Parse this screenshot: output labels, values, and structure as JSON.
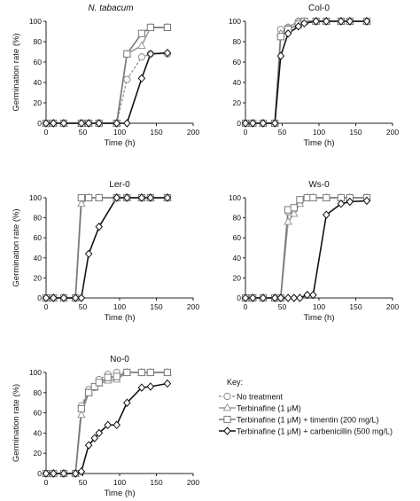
{
  "series_styles": [
    {
      "marker": "circle",
      "color": "#8a8a8a",
      "dash": "3,2",
      "width": 1.2
    },
    {
      "marker": "triangle",
      "color": "#9a9a9a",
      "dash": "",
      "width": 1.6
    },
    {
      "marker": "square",
      "color": "#7a7a7a",
      "dash": "",
      "width": 1.6
    },
    {
      "marker": "diamond",
      "color": "#111111",
      "dash": "",
      "width": 1.6
    }
  ],
  "key": {
    "title": "Key:",
    "entries": [
      "No treatment",
      "Terbinafine (1 μM)",
      "Terbinafine (1 μM) + timentin (200 mg/L)",
      "Terbinafine (1 μM) + carbenicillin (500 mg/L)"
    ]
  },
  "chart_data": [
    {
      "type": "line",
      "title": "N. tabacum",
      "title_italic": true,
      "xlabel": "Time (h)",
      "ylabel": "Germination rate (%)",
      "xlim": [
        0,
        200
      ],
      "ylim": [
        0,
        100
      ],
      "xticks": [
        0,
        50,
        100,
        150,
        200
      ],
      "yticks": [
        0,
        20,
        40,
        60,
        80,
        100
      ],
      "series": [
        {
          "x": [
            0,
            10,
            24,
            48,
            58,
            72,
            96,
            110,
            130,
            142,
            165
          ],
          "y": [
            0,
            0,
            0,
            0,
            0,
            0,
            0,
            43,
            65,
            68,
            68
          ]
        },
        {
          "x": [
            0,
            10,
            24,
            48,
            58,
            72,
            96,
            110,
            130,
            142,
            165
          ],
          "y": [
            0,
            0,
            0,
            0,
            0,
            0,
            0,
            68,
            76,
            94,
            94
          ]
        },
        {
          "x": [
            0,
            10,
            24,
            48,
            58,
            72,
            96,
            110,
            130,
            142,
            165
          ],
          "y": [
            0,
            0,
            0,
            0,
            0,
            0,
            0,
            68,
            88,
            94,
            94
          ]
        },
        {
          "x": [
            0,
            10,
            24,
            48,
            58,
            72,
            96,
            110,
            130,
            142,
            165
          ],
          "y": [
            0,
            0,
            0,
            0,
            0,
            0,
            0,
            0,
            44,
            68,
            69
          ]
        }
      ]
    },
    {
      "type": "line",
      "title": "Col-0",
      "xlabel": "Time (h)",
      "ylabel": "",
      "xlim": [
        0,
        200
      ],
      "ylim": [
        0,
        100
      ],
      "xticks": [
        0,
        50,
        100,
        150,
        200
      ],
      "yticks": [
        0,
        20,
        40,
        60,
        80,
        100
      ],
      "series": [
        {
          "x": [
            0,
            10,
            24,
            40,
            48,
            58,
            72,
            80,
            96,
            110,
            130,
            142,
            165
          ],
          "y": [
            0,
            0,
            0,
            0,
            92,
            94,
            100,
            100,
            100,
            100,
            100,
            100,
            100
          ]
        },
        {
          "x": [
            0,
            10,
            24,
            40,
            48,
            58,
            72,
            80,
            96,
            110,
            130,
            142,
            165
          ],
          "y": [
            0,
            0,
            0,
            0,
            88,
            94,
            100,
            100,
            100,
            100,
            100,
            100,
            100
          ]
        },
        {
          "x": [
            0,
            10,
            24,
            40,
            48,
            58,
            72,
            80,
            96,
            110,
            130,
            142,
            165
          ],
          "y": [
            0,
            0,
            0,
            0,
            85,
            92,
            97,
            100,
            100,
            100,
            100,
            100,
            100
          ]
        },
        {
          "x": [
            0,
            10,
            24,
            40,
            48,
            58,
            72,
            80,
            96,
            110,
            130,
            142,
            165
          ],
          "y": [
            0,
            0,
            0,
            0,
            66,
            88,
            95,
            98,
            100,
            100,
            100,
            100,
            100
          ]
        }
      ]
    },
    {
      "type": "line",
      "title": "Ler-0",
      "xlabel": "Time (h)",
      "ylabel": "Germination rate (%)",
      "xlim": [
        0,
        200
      ],
      "ylim": [
        0,
        100
      ],
      "xticks": [
        0,
        50,
        100,
        150,
        200
      ],
      "yticks": [
        0,
        20,
        40,
        60,
        80,
        100
      ],
      "series": [
        {
          "x": [
            0,
            10,
            24,
            40,
            48,
            58,
            72,
            96,
            110,
            130,
            142,
            165
          ],
          "y": [
            0,
            0,
            0,
            0,
            100,
            100,
            100,
            100,
            100,
            100,
            100,
            100
          ]
        },
        {
          "x": [
            0,
            10,
            24,
            40,
            48,
            58,
            72,
            96,
            110,
            130,
            142,
            165
          ],
          "y": [
            0,
            0,
            0,
            0,
            94,
            100,
            100,
            100,
            100,
            100,
            100,
            100
          ]
        },
        {
          "x": [
            0,
            10,
            24,
            40,
            48,
            58,
            72,
            96,
            110,
            130,
            142,
            165
          ],
          "y": [
            0,
            0,
            0,
            0,
            100,
            100,
            100,
            100,
            100,
            100,
            100,
            100
          ]
        },
        {
          "x": [
            0,
            10,
            24,
            40,
            48,
            58,
            72,
            96,
            110,
            130,
            142,
            165
          ],
          "y": [
            0,
            0,
            0,
            0,
            0,
            44,
            71,
            100,
            100,
            100,
            100,
            100
          ]
        }
      ]
    },
    {
      "type": "line",
      "title": "Ws-0",
      "xlabel": "Time (h)",
      "ylabel": "",
      "xlim": [
        0,
        200
      ],
      "ylim": [
        0,
        100
      ],
      "xticks": [
        0,
        50,
        100,
        150,
        200
      ],
      "yticks": [
        0,
        20,
        40,
        60,
        80,
        100
      ],
      "series": [
        {
          "x": [
            0,
            10,
            24,
            40,
            48,
            58,
            66,
            74,
            84,
            92,
            110,
            130,
            142,
            165
          ],
          "y": [
            0,
            0,
            0,
            0,
            0,
            86,
            88,
            96,
            100,
            100,
            100,
            100,
            100,
            100
          ]
        },
        {
          "x": [
            0,
            10,
            24,
            40,
            48,
            58,
            66,
            74,
            84,
            92,
            110,
            130,
            142,
            165
          ],
          "y": [
            0,
            0,
            0,
            0,
            0,
            76,
            84,
            94,
            100,
            100,
            100,
            100,
            100,
            100
          ]
        },
        {
          "x": [
            0,
            10,
            24,
            40,
            48,
            58,
            66,
            74,
            84,
            92,
            110,
            130,
            142,
            165
          ],
          "y": [
            0,
            0,
            0,
            0,
            0,
            88,
            90,
            98,
            100,
            100,
            100,
            100,
            100,
            100
          ]
        },
        {
          "x": [
            0,
            10,
            24,
            40,
            48,
            58,
            66,
            74,
            84,
            92,
            110,
            130,
            142,
            165
          ],
          "y": [
            0,
            0,
            0,
            0,
            0,
            0,
            0,
            0,
            3,
            3,
            83,
            94,
            96,
            97
          ]
        }
      ]
    },
    {
      "type": "line",
      "title": "No-0",
      "xlabel": "Time (h)",
      "ylabel": "Germination rate (%)",
      "xlim": [
        0,
        200
      ],
      "ylim": [
        0,
        100
      ],
      "xticks": [
        0,
        50,
        100,
        150,
        200
      ],
      "yticks": [
        0,
        20,
        40,
        60,
        80,
        100
      ],
      "series": [
        {
          "x": [
            0,
            10,
            24,
            40,
            48,
            58,
            66,
            72,
            84,
            96,
            110,
            130,
            142,
            165
          ],
          "y": [
            0,
            0,
            0,
            0,
            67,
            83,
            85,
            93,
            98,
            100,
            100,
            100,
            100,
            100
          ]
        },
        {
          "x": [
            0,
            10,
            24,
            40,
            48,
            58,
            66,
            72,
            84,
            96,
            110,
            130,
            142,
            165
          ],
          "y": [
            0,
            0,
            0,
            0,
            58,
            80,
            85,
            89,
            92,
            93,
            100,
            100,
            100,
            100
          ]
        },
        {
          "x": [
            0,
            10,
            24,
            40,
            48,
            58,
            66,
            72,
            84,
            96,
            110,
            130,
            142,
            165
          ],
          "y": [
            0,
            0,
            0,
            0,
            64,
            80,
            86,
            90,
            95,
            96,
            100,
            100,
            100,
            100
          ]
        },
        {
          "x": [
            0,
            10,
            24,
            40,
            48,
            58,
            66,
            72,
            84,
            96,
            110,
            130,
            142,
            165
          ],
          "y": [
            0,
            0,
            0,
            0,
            2,
            28,
            35,
            40,
            48,
            48,
            70,
            85,
            86,
            89
          ]
        }
      ]
    }
  ]
}
